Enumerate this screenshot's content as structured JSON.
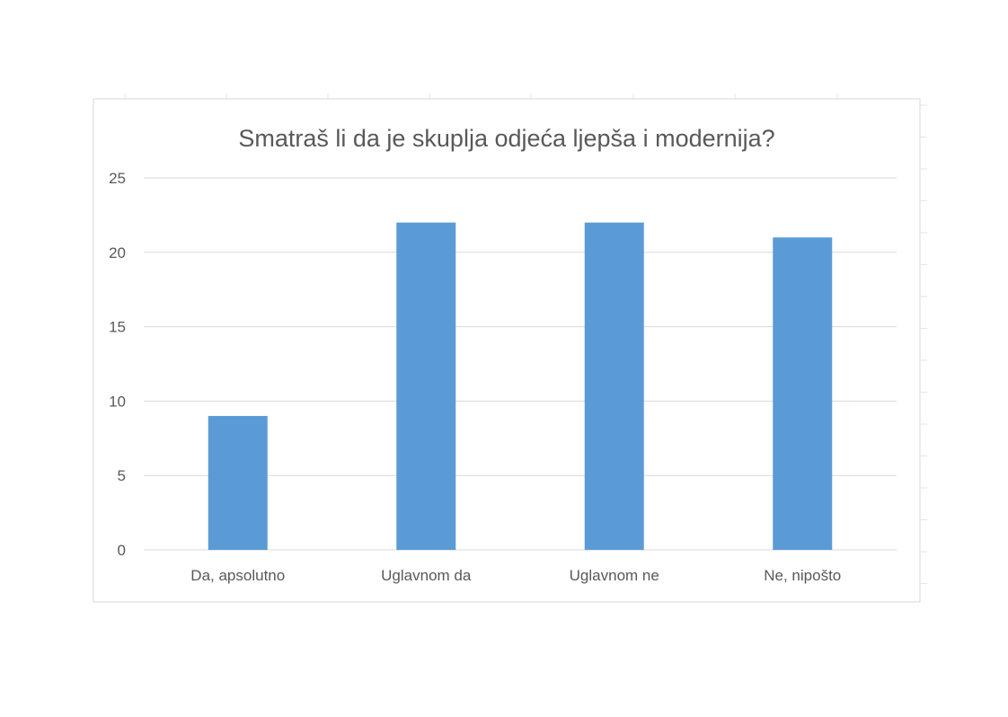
{
  "chart_data": {
    "type": "bar",
    "title": "Smatraš li da je skuplja odjeća ljepša i modernija?",
    "categories": [
      "Da, apsolutno",
      "Uglavnom da",
      "Uglavnom ne",
      "Ne, nipošto"
    ],
    "values": [
      9,
      22,
      22,
      21
    ],
    "xlabel": "",
    "ylabel": "",
    "ylim": [
      0,
      25
    ],
    "yticks": [
      0,
      5,
      10,
      15,
      20,
      25
    ],
    "grid": true,
    "legend": "none",
    "colors": {
      "bar": "#5b9bd5",
      "grid": "#d9d9d9",
      "text": "#595959",
      "frame": "#d9d9d9"
    }
  }
}
